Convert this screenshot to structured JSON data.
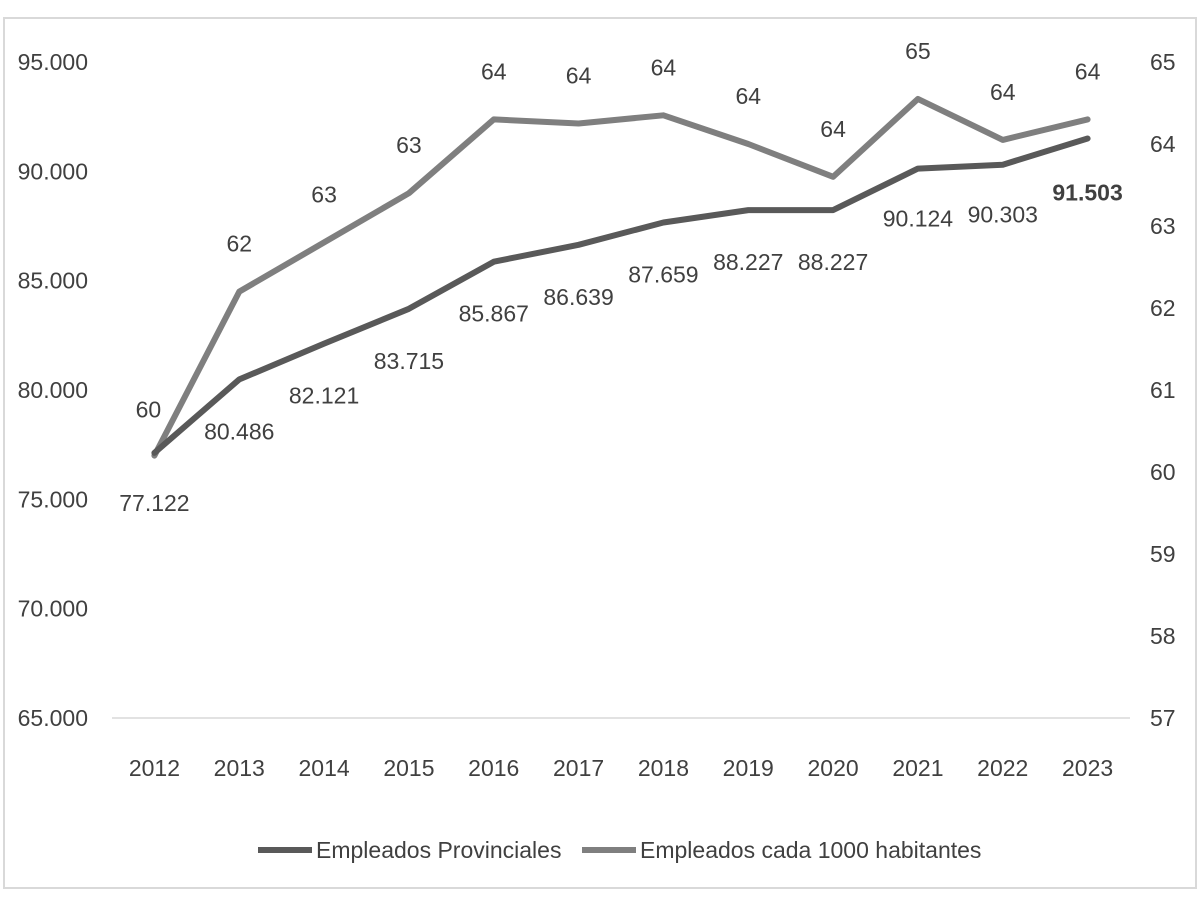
{
  "chart_data": {
    "type": "line",
    "title": "",
    "xlabel": "",
    "ylabel": "",
    "categories": [
      "2012",
      "2013",
      "2014",
      "2015",
      "2016",
      "2017",
      "2018",
      "2019",
      "2020",
      "2021",
      "2022",
      "2023"
    ],
    "y_left": {
      "ylim": [
        65000,
        95000
      ],
      "ticks": [
        65000,
        70000,
        75000,
        80000,
        85000,
        90000,
        95000
      ],
      "tick_labels": [
        "65.000",
        "70.000",
        "75.000",
        "80.000",
        "85.000",
        "90.000",
        "95.000"
      ]
    },
    "y_right": {
      "ylim": [
        57,
        65
      ],
      "ticks": [
        57,
        58,
        59,
        60,
        61,
        62,
        63,
        64,
        65
      ],
      "tick_labels": [
        "57",
        "58",
        "59",
        "60",
        "61",
        "62",
        "63",
        "64",
        "65"
      ]
    },
    "grid": "baseline-only",
    "legend_position": "bottom",
    "series": [
      {
        "name": "Empleados Provinciales",
        "axis": "left",
        "color": "#595959",
        "values": [
          77122,
          80486,
          82121,
          83715,
          85867,
          86639,
          87659,
          88227,
          88227,
          90124,
          90303,
          91503
        ],
        "labels": [
          "77.122",
          "80.486",
          "82.121",
          "83.715",
          "85.867",
          "86.639",
          "87.659",
          "88.227",
          "88.227",
          "90.124",
          "90.303",
          "91.503"
        ],
        "bold_label_index": 11
      },
      {
        "name": "Empleados cada 1000 habitantes",
        "axis": "right",
        "color": "#7f7f7f",
        "values": [
          60.2,
          62.2,
          62.8,
          63.4,
          64.3,
          64.25,
          64.35,
          64.0,
          63.6,
          64.55,
          64.05,
          64.3
        ],
        "labels": [
          "60",
          "62",
          "63",
          "63",
          "64",
          "64",
          "64",
          "64",
          "64",
          "65",
          "64",
          "64"
        ]
      }
    ]
  }
}
